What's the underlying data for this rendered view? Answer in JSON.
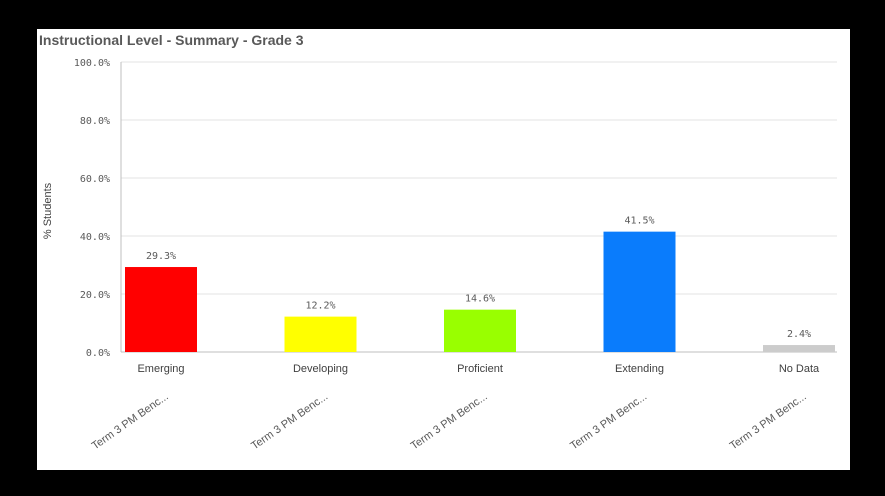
{
  "chart_data": {
    "type": "bar",
    "title": "Instructional Level - Summary - Grade 3",
    "ylabel": "% Students",
    "xlabel": "",
    "ylim": [
      0,
      100
    ],
    "yticks": [
      "0.0%",
      "20.0%",
      "40.0%",
      "60.0%",
      "80.0%",
      "100.0%"
    ],
    "grid": true,
    "categories": [
      "Emerging",
      "Developing",
      "Proficient",
      "Extending",
      "No Data"
    ],
    "group_labels": [
      "Term 3 PM Benc...",
      "Term 3 PM Benc...",
      "Term 3 PM Benc...",
      "Term 3 PM Benc...",
      "Term 3 PM Benc..."
    ],
    "values": [
      29.3,
      12.2,
      14.6,
      41.5,
      2.4
    ],
    "value_labels": [
      "29.3%",
      "12.2%",
      "14.6%",
      "41.5%",
      "2.4%"
    ],
    "colors": [
      "#ff0000",
      "#ffff00",
      "#99ff00",
      "#0a7cfc",
      "#cccccc"
    ]
  }
}
